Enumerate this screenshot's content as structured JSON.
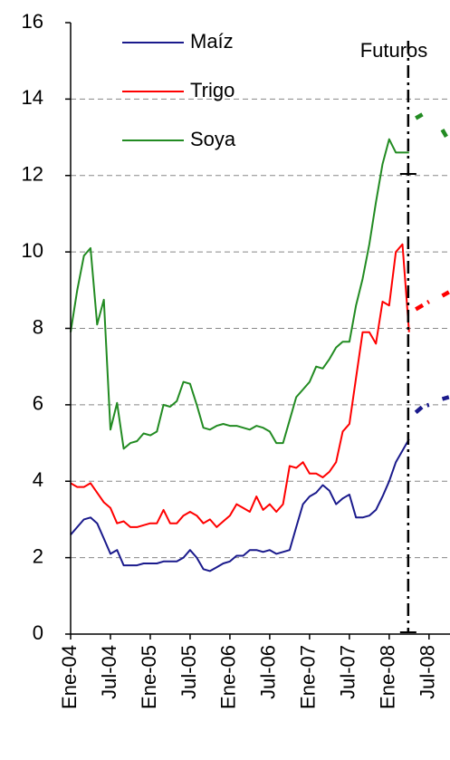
{
  "chart_data": {
    "type": "line",
    "annotation": "Futuros",
    "categories": [
      "Ene-04",
      null,
      null,
      null,
      null,
      null,
      "Jul-04",
      null,
      null,
      null,
      null,
      null,
      "Ene-05",
      null,
      null,
      null,
      null,
      null,
      "Jul-05",
      null,
      null,
      null,
      null,
      null,
      "Ene-06",
      null,
      null,
      null,
      null,
      null,
      "Jul-06",
      null,
      null,
      null,
      null,
      null,
      "Ene-07",
      null,
      null,
      null,
      null,
      null,
      "Jul-07",
      null,
      null,
      null,
      null,
      null,
      "Ene-08",
      null,
      null,
      null,
      null,
      null,
      "Jul-08",
      null,
      null,
      null
    ],
    "ylim": [
      0,
      16
    ],
    "yticks": [
      0,
      2,
      4,
      6,
      8,
      10,
      12,
      14,
      16
    ],
    "grid": true,
    "series": [
      {
        "name": "Maíz",
        "color": "#1a1a8c",
        "values": [
          2.6,
          2.8,
          3.0,
          3.05,
          2.9,
          2.5,
          2.1,
          2.2,
          1.8,
          1.8,
          1.8,
          1.85,
          1.85,
          1.85,
          1.9,
          1.9,
          1.9,
          2.0,
          2.2,
          2.0,
          1.7,
          1.65,
          1.75,
          1.85,
          1.9,
          2.05,
          2.05,
          2.2,
          2.2,
          2.15,
          2.2,
          2.1,
          2.15,
          2.2,
          2.8,
          3.4,
          3.6,
          3.7,
          3.9,
          3.75,
          3.4,
          3.55,
          3.65,
          3.05,
          3.05,
          3.1,
          3.25,
          3.6,
          4.0,
          4.5,
          4.8,
          5.1,
          null,
          null,
          null,
          null,
          null,
          null
        ],
        "futures": [
          null,
          null,
          null,
          null,
          null,
          null,
          null,
          null,
          null,
          null,
          null,
          null,
          null,
          null,
          null,
          null,
          null,
          null,
          null,
          null,
          null,
          null,
          null,
          null,
          null,
          null,
          null,
          null,
          null,
          null,
          null,
          null,
          null,
          null,
          null,
          null,
          null,
          null,
          null,
          null,
          null,
          null,
          null,
          null,
          null,
          null,
          null,
          null,
          null,
          null,
          null,
          null,
          5.8,
          5.95,
          6.0,
          null,
          6.15,
          6.2
        ]
      },
      {
        "name": "Trigo",
        "color": "#ff0000",
        "values": [
          3.95,
          3.85,
          3.85,
          3.95,
          3.7,
          3.45,
          3.3,
          2.9,
          2.95,
          2.8,
          2.8,
          2.85,
          2.9,
          2.9,
          3.25,
          2.9,
          2.9,
          3.1,
          3.2,
          3.1,
          2.9,
          3.0,
          2.8,
          2.95,
          3.1,
          3.4,
          3.3,
          3.2,
          3.6,
          3.25,
          3.4,
          3.2,
          3.4,
          4.4,
          4.35,
          4.5,
          4.2,
          4.2,
          4.1,
          4.25,
          4.5,
          5.3,
          5.5,
          6.7,
          7.9,
          7.9,
          7.6,
          8.7,
          8.6,
          10.0,
          10.2,
          7.9,
          null,
          null,
          null,
          null,
          null,
          null
        ],
        "futures": [
          null,
          null,
          null,
          null,
          null,
          null,
          null,
          null,
          null,
          null,
          null,
          null,
          null,
          null,
          null,
          null,
          null,
          null,
          null,
          null,
          null,
          null,
          null,
          null,
          null,
          null,
          null,
          null,
          null,
          null,
          null,
          null,
          null,
          null,
          null,
          null,
          null,
          null,
          null,
          null,
          null,
          null,
          null,
          null,
          null,
          null,
          null,
          null,
          null,
          null,
          null,
          null,
          8.5,
          8.6,
          8.7,
          null,
          8.85,
          8.95
        ]
      },
      {
        "name": "Soya",
        "color": "#228b22",
        "values": [
          7.9,
          9.0,
          9.9,
          10.1,
          8.1,
          8.75,
          5.35,
          6.05,
          4.85,
          5.0,
          5.05,
          5.25,
          5.2,
          5.3,
          6.0,
          5.95,
          6.1,
          6.6,
          6.55,
          6.0,
          5.4,
          5.35,
          5.45,
          5.5,
          5.45,
          5.45,
          5.4,
          5.35,
          5.45,
          5.4,
          5.3,
          5.0,
          5.0,
          5.6,
          6.2,
          6.4,
          6.6,
          7.0,
          6.95,
          7.2,
          7.5,
          7.65,
          7.65,
          8.6,
          9.3,
          10.2,
          11.3,
          12.3,
          12.95,
          12.6,
          12.6,
          12.6,
          null,
          null,
          null,
          null,
          null,
          null
        ],
        "futures": [
          null,
          null,
          null,
          null,
          null,
          null,
          null,
          null,
          null,
          null,
          null,
          null,
          null,
          null,
          null,
          null,
          null,
          null,
          null,
          null,
          null,
          null,
          null,
          null,
          null,
          null,
          null,
          null,
          null,
          null,
          null,
          null,
          null,
          null,
          null,
          null,
          null,
          null,
          null,
          null,
          null,
          null,
          null,
          null,
          null,
          null,
          null,
          null,
          null,
          null,
          null,
          null,
          13.5,
          13.6,
          null,
          null,
          13.2,
          12.9
        ]
      }
    ]
  }
}
